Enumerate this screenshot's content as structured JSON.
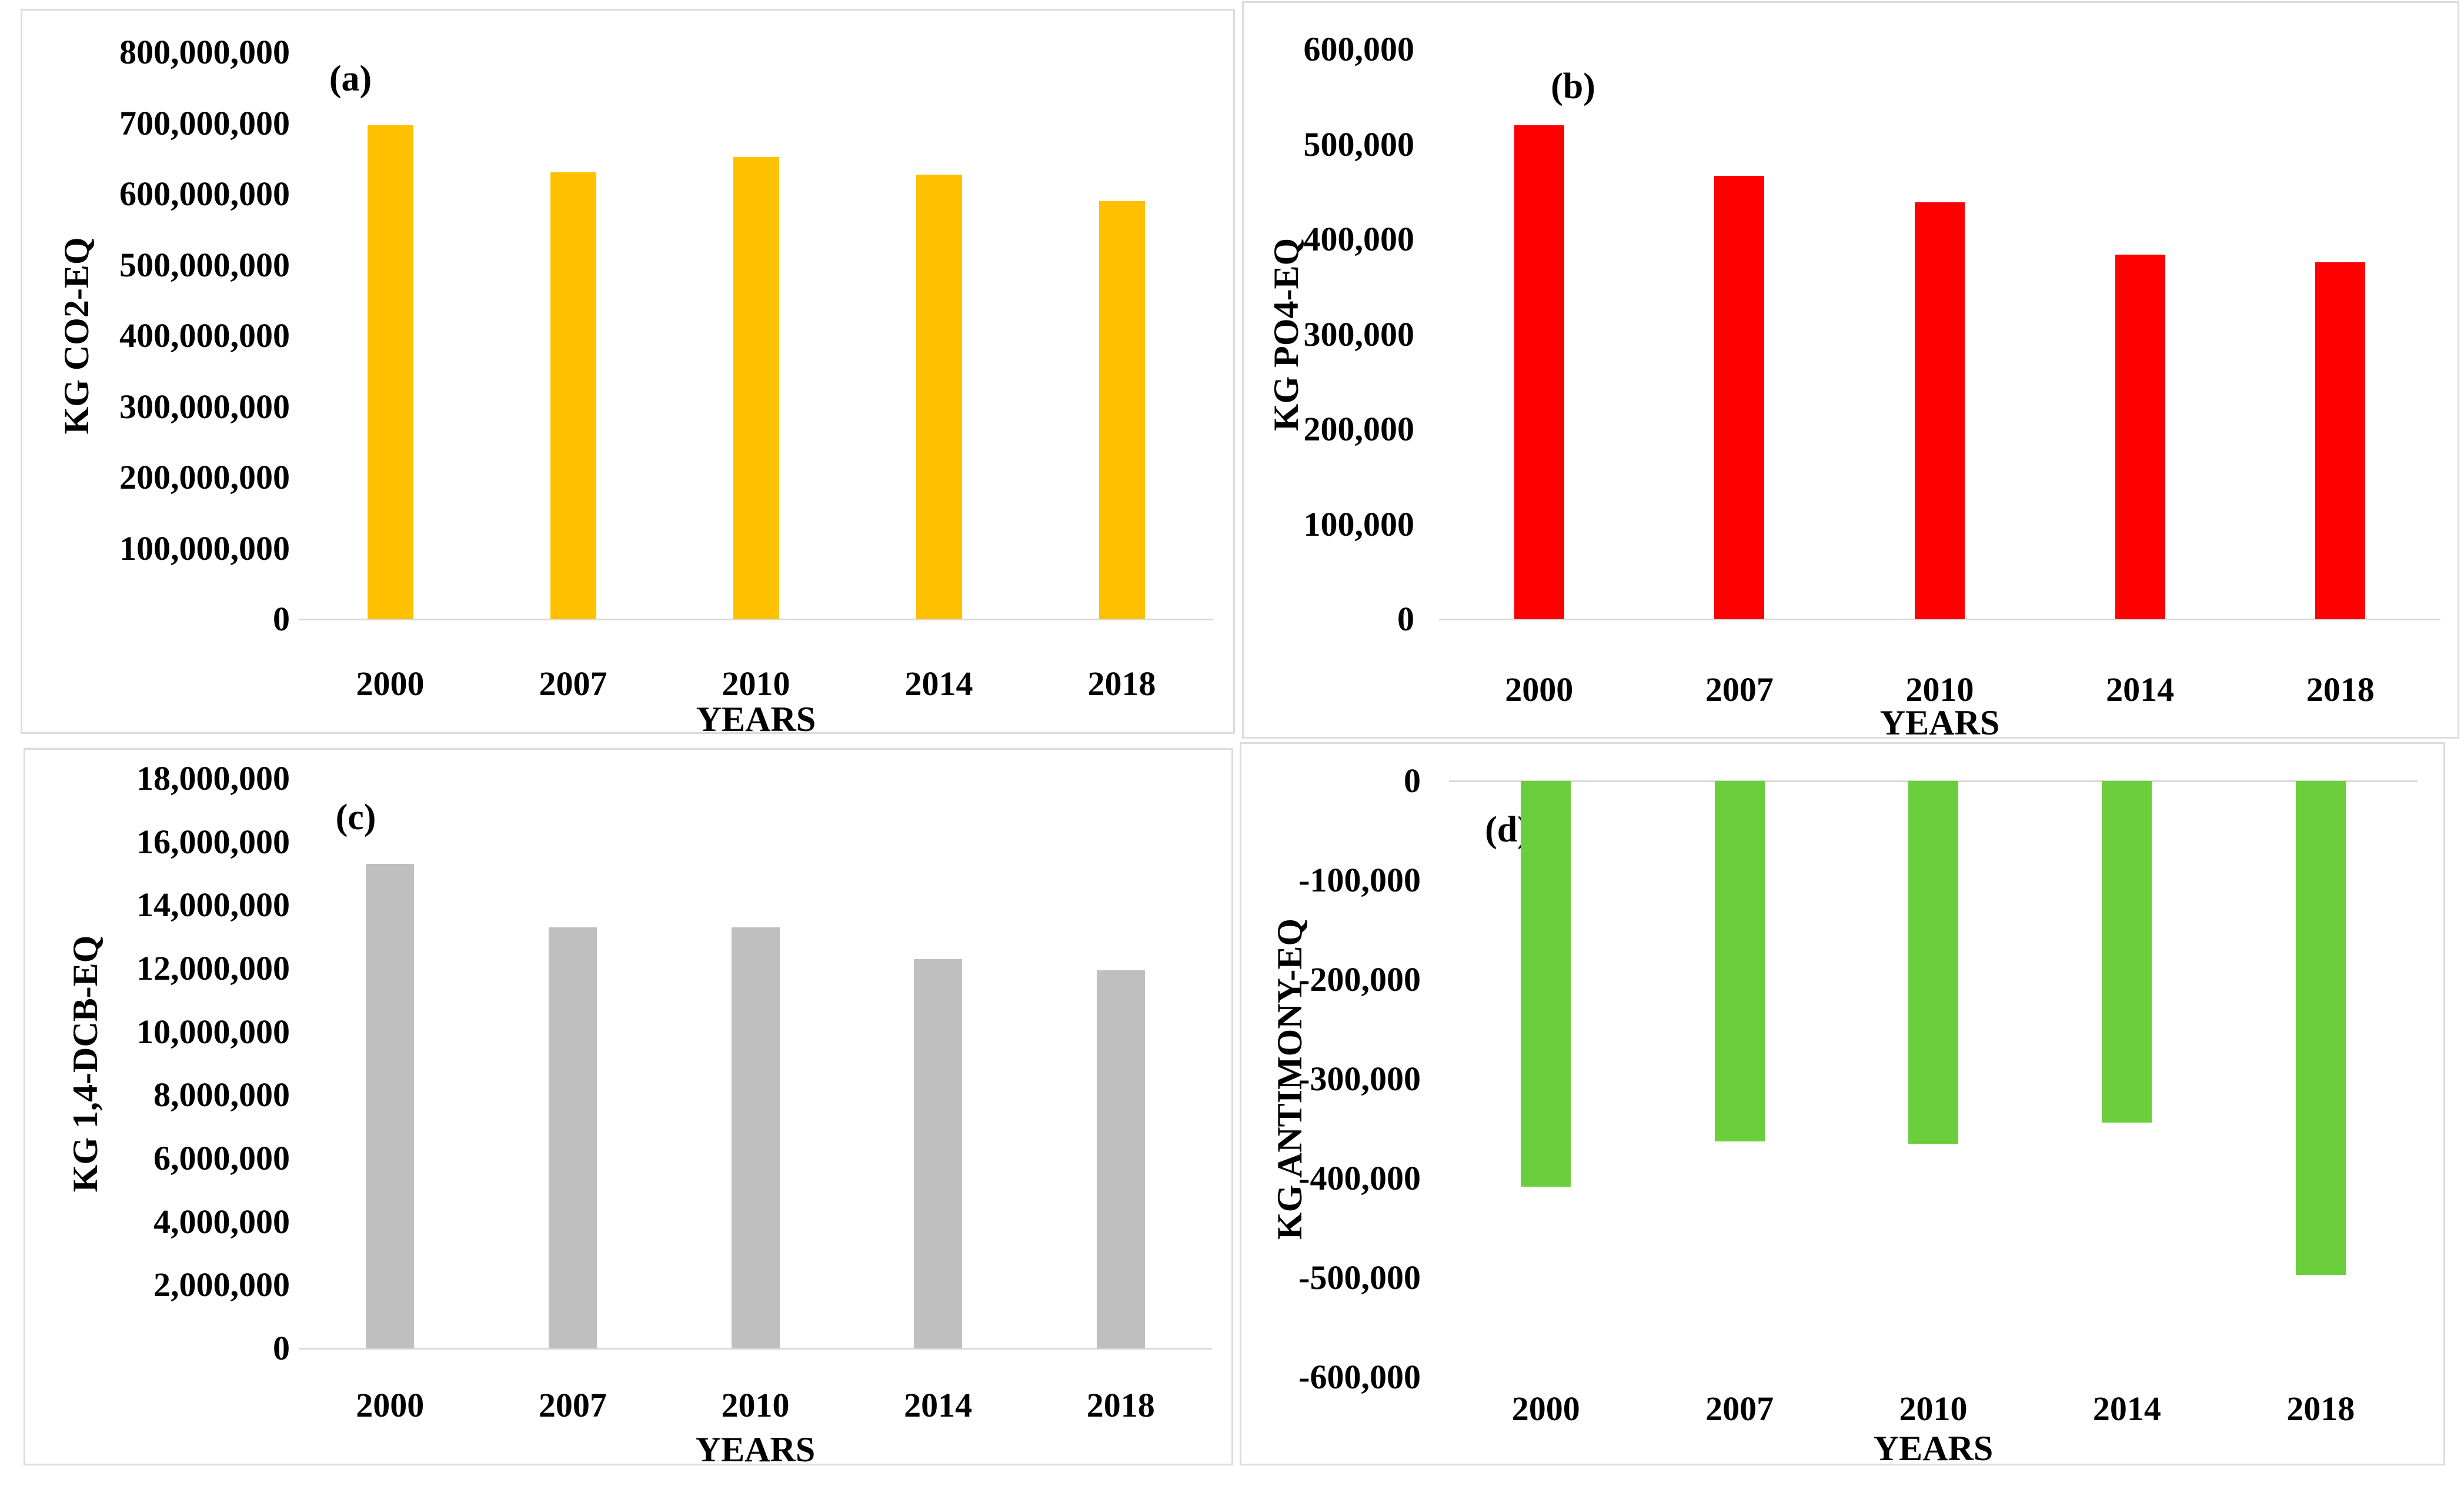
{
  "figure": {
    "background": "#ffffff",
    "panel_border": "#dcdcdc",
    "axis_line_color": "#d9d9d9"
  },
  "chart_data": [
    {
      "type": "bar",
      "panel_label": "(a)",
      "ylabel": "KG CO2-EQ",
      "xlabel": "YEARS",
      "categories": [
        "2000",
        "2007",
        "2010",
        "2014",
        "2018"
      ],
      "values": [
        697000000,
        631000000,
        652000000,
        627000000,
        590000000
      ],
      "bar_color": "#FFC000",
      "ylim": [
        0,
        800000000
      ],
      "ytick_values": [
        800000000,
        700000000,
        600000000,
        500000000,
        400000000,
        300000000,
        200000000,
        100000000,
        0
      ],
      "ytick_labels": [
        "800,000,000",
        "700,000,000",
        "600,000,000",
        "500,000,000",
        "400,000,000",
        "300,000,000",
        "200,000,000",
        "100,000,000",
        "0"
      ],
      "grid": "off",
      "legend": "none"
    },
    {
      "type": "bar",
      "panel_label": "(b)",
      "ylabel": "KG PO4-EQ",
      "xlabel": "YEARS",
      "categories": [
        "2000",
        "2007",
        "2010",
        "2014",
        "2018"
      ],
      "values": [
        520000,
        467000,
        439000,
        384000,
        376000
      ],
      "bar_color": "#FF0000",
      "ylim": [
        0,
        600000
      ],
      "ytick_values": [
        600000,
        500000,
        400000,
        300000,
        200000,
        100000,
        0
      ],
      "ytick_labels": [
        "600,000",
        "500,000",
        "400,000",
        "300,000",
        "200,000",
        "100,000",
        "0"
      ],
      "grid": "off",
      "legend": "none"
    },
    {
      "type": "bar",
      "panel_label": "(c)",
      "ylabel": "KG 1,4-DCB-EQ",
      "xlabel": "YEARS",
      "categories": [
        "2000",
        "2007",
        "2010",
        "2014",
        "2018"
      ],
      "values": [
        15300000,
        13300000,
        13300000,
        12300000,
        11950000
      ],
      "bar_color": "#BFBFBF",
      "ylim": [
        0,
        18000000
      ],
      "ytick_values": [
        18000000,
        16000000,
        14000000,
        12000000,
        10000000,
        8000000,
        6000000,
        4000000,
        2000000,
        0
      ],
      "ytick_labels": [
        "18,000,000",
        "16,000,000",
        "14,000,000",
        "12,000,000",
        "10,000,000",
        "8,000,000",
        "6,000,000",
        "4,000,000",
        "2,000,000",
        "0"
      ],
      "grid": "off",
      "legend": "none"
    },
    {
      "type": "bar",
      "panel_label": "(d)",
      "ylabel": "KG ANTIMONY-EQ",
      "xlabel": "YEARS",
      "categories": [
        "2000",
        "2007",
        "2010",
        "2014",
        "2018"
      ],
      "values": [
        -408000,
        -363000,
        -365000,
        -344000,
        -497000
      ],
      "bar_color": "#6BCE3B",
      "ylim": [
        -600000,
        0
      ],
      "ytick_values": [
        0,
        -100000,
        -200000,
        -300000,
        -400000,
        -500000,
        -600000
      ],
      "ytick_labels": [
        "0",
        "-100,000",
        "-200,000",
        "-300,000",
        "-400,000",
        "-500,000",
        "-600,000"
      ],
      "grid": "off",
      "legend": "none"
    }
  ]
}
